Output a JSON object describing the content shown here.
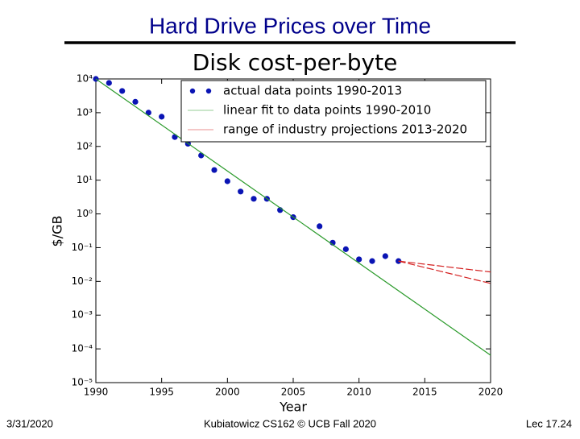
{
  "slide": {
    "title": "Hard Drive Prices over Time",
    "date": "3/31/2020",
    "footer": "Kubiatowicz CS162 © UCB Fall 2020",
    "page": "Lec 17.24"
  },
  "chart_data": {
    "type": "scatter",
    "title": "Disk cost-per-byte",
    "x_label": "Year",
    "y_label": "$/GB",
    "log_y": true,
    "legend": "upper right",
    "xlim": [
      1990,
      2020
    ],
    "xticks": [
      1990,
      1995,
      2000,
      2005,
      2010,
      2015,
      2020
    ],
    "ylim": [
      1e-05,
      10000
    ],
    "yticks": [
      {
        "value": 1e-05,
        "label": "10⁻⁵"
      },
      {
        "value": 0.0001,
        "label": "10⁻⁴"
      },
      {
        "value": 0.001,
        "label": "10⁻³"
      },
      {
        "value": 0.01,
        "label": "10⁻²"
      },
      {
        "value": 0.1,
        "label": "10⁻¹"
      },
      {
        "value": 1,
        "label": "10⁰"
      },
      {
        "value": 10,
        "label": "10¹"
      },
      {
        "value": 100,
        "label": "10²"
      },
      {
        "value": 1000,
        "label": "10³"
      },
      {
        "value": 10000,
        "label": "10⁴"
      }
    ],
    "series": [
      {
        "name": "actual data points 1990-2013",
        "color": "#0a14b4",
        "mark": "point",
        "x": [
          1990,
          1991,
          1992,
          1993,
          1994,
          1995,
          1996,
          1997,
          1998,
          1999,
          2000,
          2001,
          2002,
          2003,
          2004,
          2005,
          2007,
          2008,
          2009,
          2010,
          2011,
          2012,
          2013
        ],
        "values": [
          10000,
          7600,
          4400,
          2100,
          1000,
          760,
          190,
          120,
          54,
          20,
          9.3,
          4.6,
          2.8,
          2.8,
          1.3,
          0.8,
          0.43,
          0.14,
          0.09,
          0.045,
          0.04,
          0.056,
          0.04
        ]
      },
      {
        "name": "linear fit to data points 1990-2010",
        "color": "#2a9a2a",
        "mark": "line",
        "x": [
          1990,
          2020
        ],
        "values": [
          10000,
          6.5e-05
        ]
      },
      {
        "name": "range of industry projections 2013-2020",
        "color": "#d42020",
        "mark": "dashed",
        "x": [
          2013,
          2020
        ],
        "values": [
          0.04,
          0.019
        ]
      },
      {
        "color": "#d42020",
        "mark": "dashed",
        "x": [
          2013,
          2020
        ],
        "values": [
          0.04,
          0.0087
        ]
      }
    ]
  }
}
